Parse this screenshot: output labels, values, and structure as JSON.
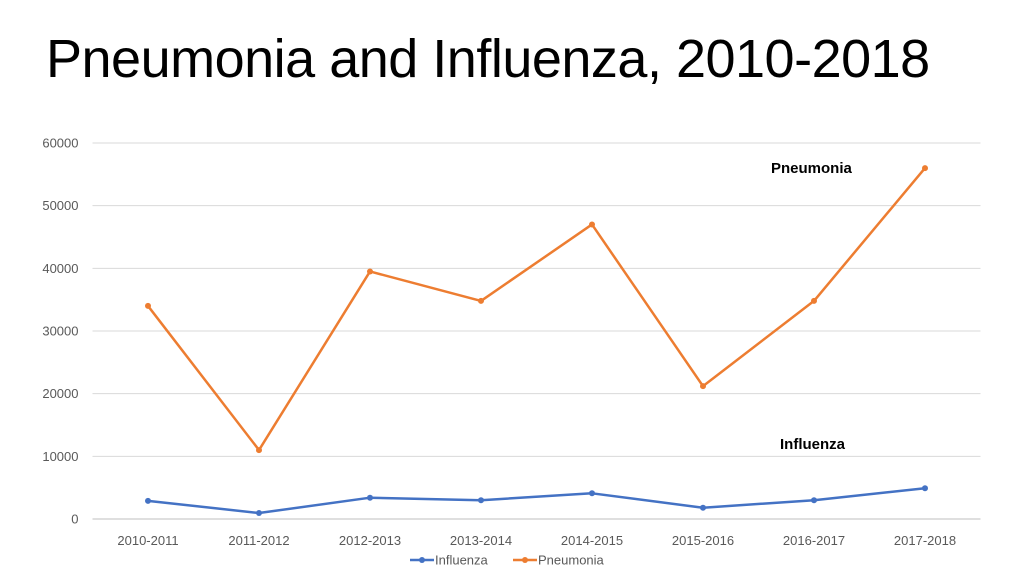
{
  "chart_data": {
    "type": "line",
    "title": "Pneumonia and Influenza, 2010-2018",
    "xlabel": "",
    "ylabel": "",
    "categories": [
      "2010-2011",
      "2011-2012",
      "2012-2013",
      "2013-2014",
      "2014-2015",
      "2015-2016",
      "2016-2017",
      "2017-2018"
    ],
    "ylim": [
      0,
      60000
    ],
    "yticks": [
      0,
      10000,
      20000,
      30000,
      40000,
      50000,
      60000
    ],
    "grid": true,
    "legend": "bottom",
    "series": [
      {
        "name": "Influenza",
        "color": "#4472C4",
        "values": [
          2900,
          950,
          3400,
          3000,
          4100,
          1800,
          3000,
          4900
        ]
      },
      {
        "name": "Pneumonia",
        "color": "#ED7D31",
        "values": [
          34000,
          11000,
          39500,
          34800,
          47000,
          21200,
          34800,
          56000
        ]
      }
    ],
    "annotations": [
      {
        "text": "Pneumonia",
        "series": "Pneumonia"
      },
      {
        "text": "Influenza",
        "series": "Influenza"
      }
    ]
  }
}
